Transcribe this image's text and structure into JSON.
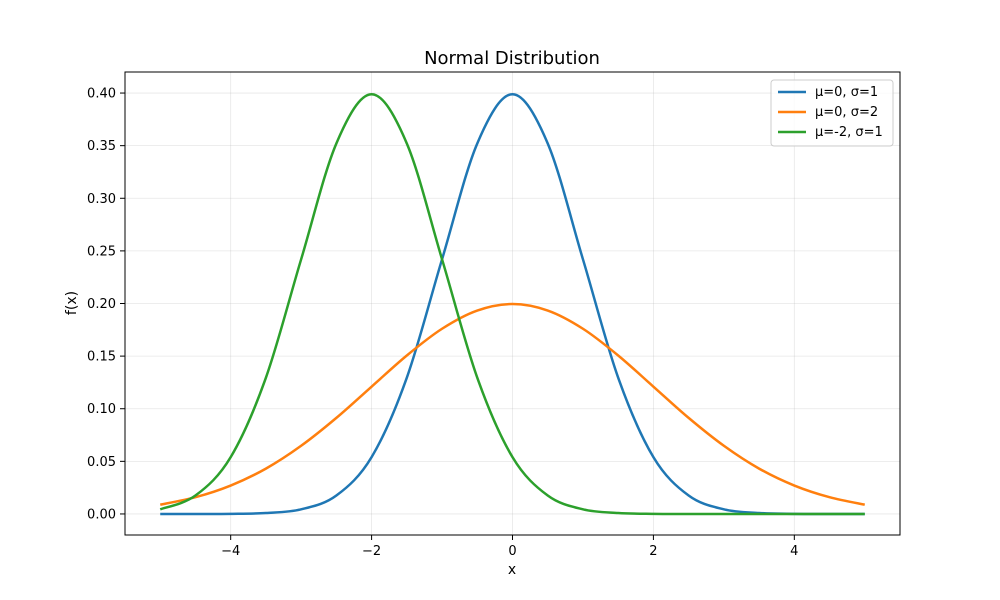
{
  "chart_data": {
    "type": "line",
    "title": "Normal Distribution",
    "xlabel": "x",
    "ylabel": "f(x)",
    "xlim": [
      -5.5,
      5.5
    ],
    "ylim": [
      -0.02,
      0.42
    ],
    "xticks": [
      -4,
      -2,
      0,
      2,
      4
    ],
    "xtick_labels": [
      "−4",
      "−2",
      "0",
      "2",
      "4"
    ],
    "yticks": [
      0.0,
      0.05,
      0.1,
      0.15,
      0.2,
      0.25,
      0.3,
      0.35,
      0.4
    ],
    "ytick_labels": [
      "0.00",
      "0.05",
      "0.10",
      "0.15",
      "0.20",
      "0.25",
      "0.30",
      "0.35",
      "0.40"
    ],
    "grid": true,
    "legend_position": "top-right",
    "x": [
      -5.0,
      -4.5,
      -4.0,
      -3.5,
      -3.0,
      -2.5,
      -2.0,
      -1.5,
      -1.0,
      -0.5,
      0.0,
      0.5,
      1.0,
      1.5,
      2.0,
      2.5,
      3.0,
      3.5,
      4.0,
      4.5,
      5.0
    ],
    "series": [
      {
        "name": "μ=0, σ=1",
        "color": "#1f77b4",
        "values": [
          0.0,
          0.0,
          0.0001,
          0.0009,
          0.0044,
          0.0175,
          0.054,
          0.1295,
          0.242,
          0.3521,
          0.3989,
          0.3521,
          0.242,
          0.1295,
          0.054,
          0.0175,
          0.0044,
          0.0009,
          0.0001,
          0.0,
          0.0
        ]
      },
      {
        "name": "μ=0, σ=2",
        "color": "#ff7f0e",
        "values": [
          0.0088,
          0.0159,
          0.027,
          0.0431,
          0.0648,
          0.0913,
          0.121,
          0.1506,
          0.176,
          0.1933,
          0.1995,
          0.1933,
          0.176,
          0.1506,
          0.121,
          0.0913,
          0.0648,
          0.0431,
          0.027,
          0.0159,
          0.0088
        ]
      },
      {
        "name": "μ=-2, σ=1",
        "color": "#2ca02c",
        "values": [
          0.0044,
          0.0175,
          0.054,
          0.1295,
          0.242,
          0.3521,
          0.3989,
          0.3521,
          0.242,
          0.1295,
          0.054,
          0.0175,
          0.0044,
          0.0009,
          0.0001,
          0.0,
          0.0,
          0.0,
          0.0,
          0.0,
          0.0
        ]
      }
    ]
  }
}
